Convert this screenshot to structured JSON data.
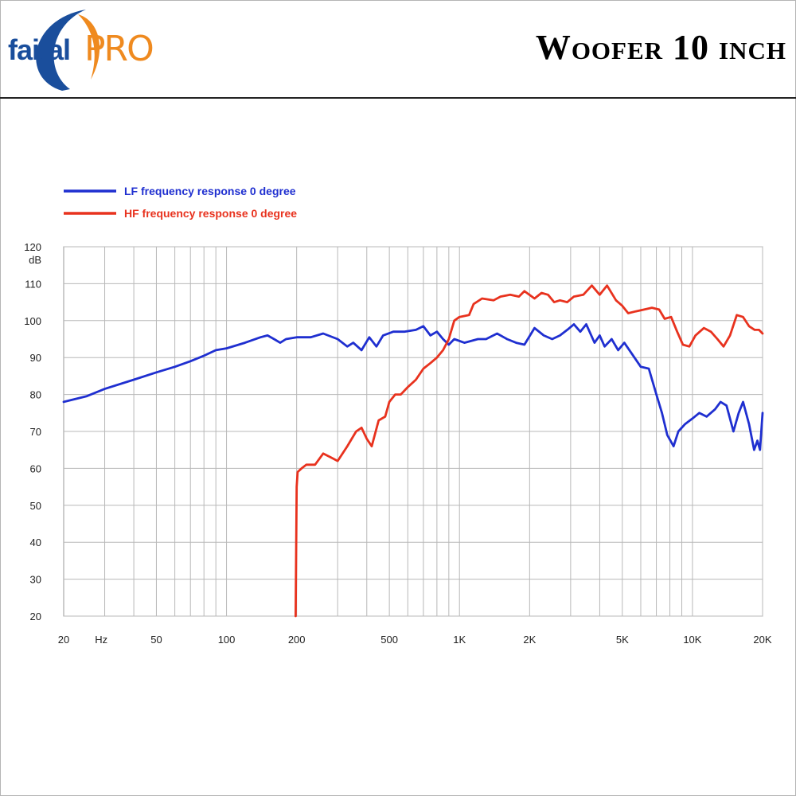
{
  "header": {
    "brand_word": "faital",
    "brand_pro": "PRO",
    "title": "Woofer 10 inch"
  },
  "colors": {
    "brand_blue": "#1a4e9c",
    "brand_orange": "#ef8a1f",
    "lf_series": "#1f2fd0",
    "hf_series": "#e8321e",
    "grid": "#b8b8b8"
  },
  "chart_data": {
    "type": "line",
    "x_scale": "log",
    "y_unit": "dB",
    "x_unit": "Hz",
    "xlim": [
      20,
      20000
    ],
    "ylim": [
      20,
      120
    ],
    "grid": true,
    "legend_placement": "top-left",
    "y_ticks": [
      {
        "value": 120,
        "label": "120"
      },
      {
        "value": 110,
        "label": "110"
      },
      {
        "value": 100,
        "label": "100"
      },
      {
        "value": 90,
        "label": "90"
      },
      {
        "value": 80,
        "label": "80"
      },
      {
        "value": 70,
        "label": "70"
      },
      {
        "value": 60,
        "label": "60"
      },
      {
        "value": 50,
        "label": "50"
      },
      {
        "value": 40,
        "label": "40"
      },
      {
        "value": 30,
        "label": "30"
      },
      {
        "value": 20,
        "label": "20"
      }
    ],
    "x_ticks": [
      {
        "value": 20,
        "label": "20"
      },
      {
        "value": 50,
        "label": "50"
      },
      {
        "value": 100,
        "label": "100"
      },
      {
        "value": 200,
        "label": "200"
      },
      {
        "value": 500,
        "label": "500"
      },
      {
        "value": 1000,
        "label": "1K"
      },
      {
        "value": 2000,
        "label": "2K"
      },
      {
        "value": 5000,
        "label": "5K"
      },
      {
        "value": 10000,
        "label": "10K"
      },
      {
        "value": 20000,
        "label": "20K"
      }
    ],
    "x_gridlines": [
      30,
      40,
      50,
      60,
      70,
      80,
      90,
      100,
      200,
      300,
      400,
      500,
      600,
      700,
      800,
      900,
      1000,
      2000,
      3000,
      4000,
      5000,
      6000,
      7000,
      8000,
      9000,
      10000,
      20000
    ],
    "series": [
      {
        "name": "LF frequency response 0 degree",
        "color": "#1f2fd0",
        "points": [
          [
            20,
            78
          ],
          [
            25,
            79.5
          ],
          [
            30,
            81.5
          ],
          [
            40,
            84
          ],
          [
            50,
            86
          ],
          [
            60,
            87.5
          ],
          [
            70,
            89
          ],
          [
            80,
            90.5
          ],
          [
            90,
            92
          ],
          [
            100,
            92.5
          ],
          [
            120,
            94
          ],
          [
            140,
            95.5
          ],
          [
            150,
            96
          ],
          [
            160,
            95
          ],
          [
            170,
            94
          ],
          [
            180,
            95
          ],
          [
            200,
            95.5
          ],
          [
            230,
            95.5
          ],
          [
            260,
            96.5
          ],
          [
            300,
            95
          ],
          [
            330,
            93
          ],
          [
            350,
            94
          ],
          [
            380,
            92
          ],
          [
            410,
            95.5
          ],
          [
            440,
            93
          ],
          [
            470,
            96
          ],
          [
            520,
            97
          ],
          [
            580,
            97
          ],
          [
            650,
            97.5
          ],
          [
            700,
            98.5
          ],
          [
            750,
            96
          ],
          [
            800,
            97
          ],
          [
            850,
            95
          ],
          [
            900,
            93.5
          ],
          [
            950,
            95
          ],
          [
            1050,
            94
          ],
          [
            1200,
            95
          ],
          [
            1300,
            95
          ],
          [
            1450,
            96.5
          ],
          [
            1600,
            95
          ],
          [
            1750,
            94
          ],
          [
            1900,
            93.5
          ],
          [
            2100,
            98
          ],
          [
            2300,
            96
          ],
          [
            2500,
            95
          ],
          [
            2700,
            96
          ],
          [
            2900,
            97.5
          ],
          [
            3100,
            99
          ],
          [
            3300,
            97
          ],
          [
            3500,
            99
          ],
          [
            3800,
            94
          ],
          [
            4000,
            96
          ],
          [
            4200,
            93
          ],
          [
            4500,
            95
          ],
          [
            4800,
            92
          ],
          [
            5100,
            94
          ],
          [
            5500,
            91
          ],
          [
            6000,
            87.5
          ],
          [
            6500,
            87
          ],
          [
            7000,
            80
          ],
          [
            7400,
            75
          ],
          [
            7800,
            69
          ],
          [
            8300,
            66
          ],
          [
            8700,
            70
          ],
          [
            9300,
            72
          ],
          [
            10000,
            73.5
          ],
          [
            10700,
            75
          ],
          [
            11500,
            74
          ],
          [
            12500,
            76
          ],
          [
            13200,
            78
          ],
          [
            14000,
            77
          ],
          [
            15000,
            70
          ],
          [
            15800,
            75
          ],
          [
            16500,
            78
          ],
          [
            17500,
            72
          ],
          [
            18400,
            65
          ],
          [
            19000,
            67.5
          ],
          [
            19500,
            65
          ],
          [
            20000,
            75
          ]
        ]
      },
      {
        "name": "HF frequency response 0 degree",
        "color": "#e8321e",
        "points": [
          [
            198,
            20
          ],
          [
            200,
            55
          ],
          [
            202,
            59
          ],
          [
            210,
            60
          ],
          [
            220,
            61
          ],
          [
            240,
            61
          ],
          [
            260,
            64
          ],
          [
            280,
            63
          ],
          [
            300,
            62
          ],
          [
            330,
            66
          ],
          [
            360,
            70
          ],
          [
            380,
            71
          ],
          [
            400,
            68
          ],
          [
            420,
            66
          ],
          [
            450,
            73
          ],
          [
            480,
            74
          ],
          [
            500,
            78
          ],
          [
            530,
            80
          ],
          [
            560,
            80
          ],
          [
            600,
            82
          ],
          [
            650,
            84
          ],
          [
            700,
            87
          ],
          [
            750,
            88.5
          ],
          [
            800,
            90
          ],
          [
            850,
            92
          ],
          [
            900,
            95
          ],
          [
            950,
            100
          ],
          [
            1000,
            101
          ],
          [
            1100,
            101.5
          ],
          [
            1150,
            104.5
          ],
          [
            1250,
            106
          ],
          [
            1400,
            105.5
          ],
          [
            1500,
            106.5
          ],
          [
            1650,
            107
          ],
          [
            1800,
            106.5
          ],
          [
            1900,
            108
          ],
          [
            2100,
            106
          ],
          [
            2250,
            107.5
          ],
          [
            2400,
            107
          ],
          [
            2550,
            105
          ],
          [
            2700,
            105.5
          ],
          [
            2900,
            105
          ],
          [
            3100,
            106.5
          ],
          [
            3400,
            107
          ],
          [
            3700,
            109.5
          ],
          [
            4000,
            107
          ],
          [
            4300,
            109.5
          ],
          [
            4700,
            105.5
          ],
          [
            5000,
            104
          ],
          [
            5300,
            102
          ],
          [
            5700,
            102.5
          ],
          [
            6200,
            103
          ],
          [
            6700,
            103.5
          ],
          [
            7200,
            103
          ],
          [
            7600,
            100.5
          ],
          [
            8100,
            101
          ],
          [
            8600,
            97
          ],
          [
            9100,
            93.5
          ],
          [
            9700,
            93
          ],
          [
            10300,
            96
          ],
          [
            11200,
            98
          ],
          [
            12000,
            97
          ],
          [
            12800,
            95
          ],
          [
            13600,
            93
          ],
          [
            14500,
            96
          ],
          [
            15500,
            101.5
          ],
          [
            16500,
            101
          ],
          [
            17500,
            98.5
          ],
          [
            18500,
            97.5
          ],
          [
            19300,
            97.5
          ],
          [
            20000,
            96.5
          ]
        ]
      }
    ]
  }
}
